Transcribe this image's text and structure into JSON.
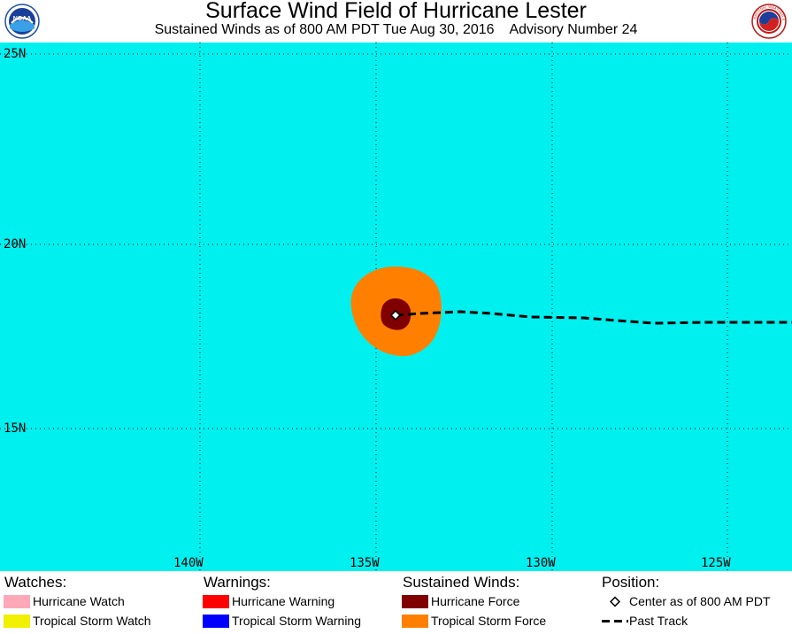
{
  "header": {
    "title": "Surface Wind Field of Hurricane Lester",
    "subtitle": "Sustained Winds as of 800 AM PDT Tue Aug 30, 2016    Advisory Number 24",
    "left_logo_icon": "noaa-logo-icon",
    "left_logo_text": "NOAA",
    "right_logo_icon": "national-weather-service-logo-icon",
    "right_logo_text": "NATIONAL WEATHER SERVICE"
  },
  "map": {
    "ocean_color": "#00f0f0",
    "lat_labels": [
      "25N",
      "20N",
      "15N"
    ],
    "lon_labels": [
      "140W",
      "135W",
      "130W",
      "125W"
    ],
    "storm_center": {
      "lat": 18.1,
      "lon": 134.0
    },
    "tropical_storm_force_color": "#ff8000",
    "hurricane_force_color": "#800000"
  },
  "legend": {
    "watches": {
      "heading": "Watches:",
      "items": [
        {
          "label": "Hurricane Watch",
          "color": "#ffa8b8"
        },
        {
          "label": "Tropical Storm Watch",
          "color": "#f0f000"
        }
      ]
    },
    "warnings": {
      "heading": "Warnings:",
      "items": [
        {
          "label": "Hurricane Warning",
          "color": "#ff0000"
        },
        {
          "label": "Tropical Storm Warning",
          "color": "#0000ff"
        }
      ]
    },
    "winds": {
      "heading": "Sustained Winds:",
      "items": [
        {
          "label": "Hurricane Force",
          "color": "#800000"
        },
        {
          "label": "Tropical Storm Force",
          "color": "#ff8000"
        }
      ]
    },
    "position": {
      "heading": "Position:",
      "center_label": "Center as of 800 AM PDT",
      "center_icon": "diamond-marker-icon",
      "track_label": "Past Track",
      "track_icon": "dashed-line-icon"
    }
  }
}
